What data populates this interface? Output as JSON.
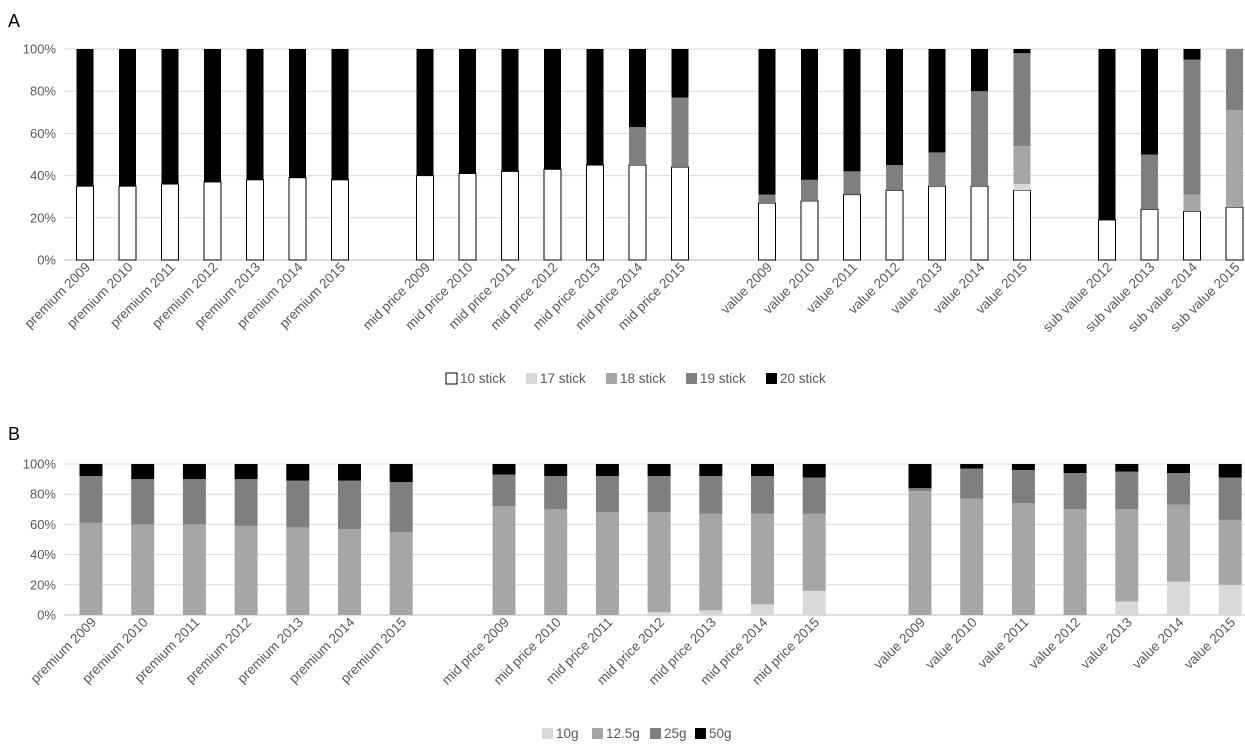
{
  "chart_data": [
    {
      "panel": "A",
      "type": "bar",
      "stacked": "percent",
      "grid": true,
      "legend_position": "bottom",
      "yticks": [
        "0%",
        "20%",
        "40%",
        "60%",
        "80%",
        "100%"
      ],
      "ylim": [
        0,
        100
      ],
      "groups": [
        {
          "categories": [
            "premium 2009",
            "premium 2010",
            "premium 2011",
            "premium 2012",
            "premium 2013",
            "premium 2014",
            "premium 2015"
          ]
        },
        {
          "categories": [
            "mid price 2009",
            "mid price 2010",
            "mid price 2011",
            "mid price 2012",
            "mid price 2013",
            "mid price 2014",
            "mid price 2015"
          ]
        },
        {
          "categories": [
            "value 2009",
            "value 2010",
            "value 2011",
            "value 2012",
            "value 2013",
            "value 2014",
            "value 2015"
          ]
        },
        {
          "categories": [
            "sub value 2012",
            "sub value 2013",
            "sub value 2014",
            "sub value 2015"
          ]
        }
      ],
      "series": [
        {
          "name": "10 stick",
          "color": "#ffffff",
          "stroke": "#000000",
          "values": [
            35,
            35,
            36,
            37,
            38,
            39,
            38,
            40,
            41,
            42,
            43,
            45,
            45,
            44,
            27,
            28,
            31,
            33,
            35,
            35,
            33,
            19,
            24,
            23,
            25
          ]
        },
        {
          "name": "17 stick",
          "color": "#d9d9d9",
          "values": [
            0,
            0,
            0,
            0,
            0,
            0,
            0,
            0,
            0,
            0,
            0,
            0,
            0,
            0,
            0,
            0,
            0,
            0,
            0,
            0,
            3,
            0,
            0,
            0,
            0
          ]
        },
        {
          "name": "18 stick",
          "color": "#a6a6a6",
          "values": [
            0,
            0,
            0,
            0,
            0,
            0,
            0,
            0,
            0,
            0,
            0,
            0,
            0,
            0,
            0,
            0,
            0,
            0,
            0,
            0,
            18,
            0,
            0,
            8,
            46
          ]
        },
        {
          "name": "19 stick",
          "color": "#7f7f7f",
          "values": [
            0,
            0,
            0,
            0,
            0,
            0,
            0,
            0,
            0,
            0,
            0,
            0,
            18,
            33,
            4,
            10,
            11,
            12,
            16,
            45,
            44,
            0,
            26,
            64,
            29
          ]
        },
        {
          "name": "20 stick",
          "color": "#000000",
          "values": [
            65,
            65,
            64,
            63,
            62,
            61,
            62,
            60,
            59,
            58,
            57,
            55,
            37,
            23,
            69,
            62,
            58,
            55,
            49,
            20,
            2,
            81,
            50,
            5,
            0
          ]
        }
      ]
    },
    {
      "panel": "B",
      "type": "bar",
      "stacked": "percent",
      "grid": true,
      "legend_position": "bottom",
      "yticks": [
        "0%",
        "20%",
        "40%",
        "60%",
        "80%",
        "100%"
      ],
      "ylim": [
        0,
        100
      ],
      "groups": [
        {
          "categories": [
            "premium 2009",
            "premium 2010",
            "premium 2011",
            "premium 2012",
            "premium 2013",
            "premium 2014",
            "premium 2015"
          ]
        },
        {
          "categories": [
            "mid price 2009",
            "mid price 2010",
            "mid price 2011",
            "mid price 2012",
            "mid price 2013",
            "mid price 2014",
            "mid price 2015"
          ]
        },
        {
          "categories": [
            "value 2009",
            "value 2010",
            "value 2011",
            "value 2012",
            "value 2013",
            "value 2014",
            "value 2015"
          ]
        }
      ],
      "series": [
        {
          "name": "10g",
          "color": "#d9d9d9",
          "values": [
            0,
            0,
            0,
            0,
            0,
            0,
            0,
            0,
            0,
            0,
            2,
            3,
            7,
            16,
            0,
            0,
            0,
            0,
            9,
            22,
            20
          ]
        },
        {
          "name": "12.5g",
          "color": "#a6a6a6",
          "values": [
            61,
            60,
            60,
            59,
            58,
            57,
            55,
            72,
            70,
            68,
            66,
            64,
            60,
            51,
            82,
            77,
            74,
            70,
            61,
            51,
            43
          ]
        },
        {
          "name": "25g",
          "color": "#7f7f7f",
          "values": [
            31,
            30,
            30,
            31,
            31,
            32,
            33,
            21,
            22,
            24,
            24,
            25,
            25,
            24,
            2,
            20,
            22,
            24,
            25,
            21,
            28
          ]
        },
        {
          "name": "50g",
          "color": "#000000",
          "values": [
            8,
            10,
            10,
            10,
            11,
            11,
            12,
            7,
            8,
            8,
            8,
            8,
            8,
            9,
            16,
            3,
            4,
            6,
            5,
            6,
            9
          ]
        }
      ]
    }
  ],
  "panel_labels": [
    "A",
    "B"
  ]
}
